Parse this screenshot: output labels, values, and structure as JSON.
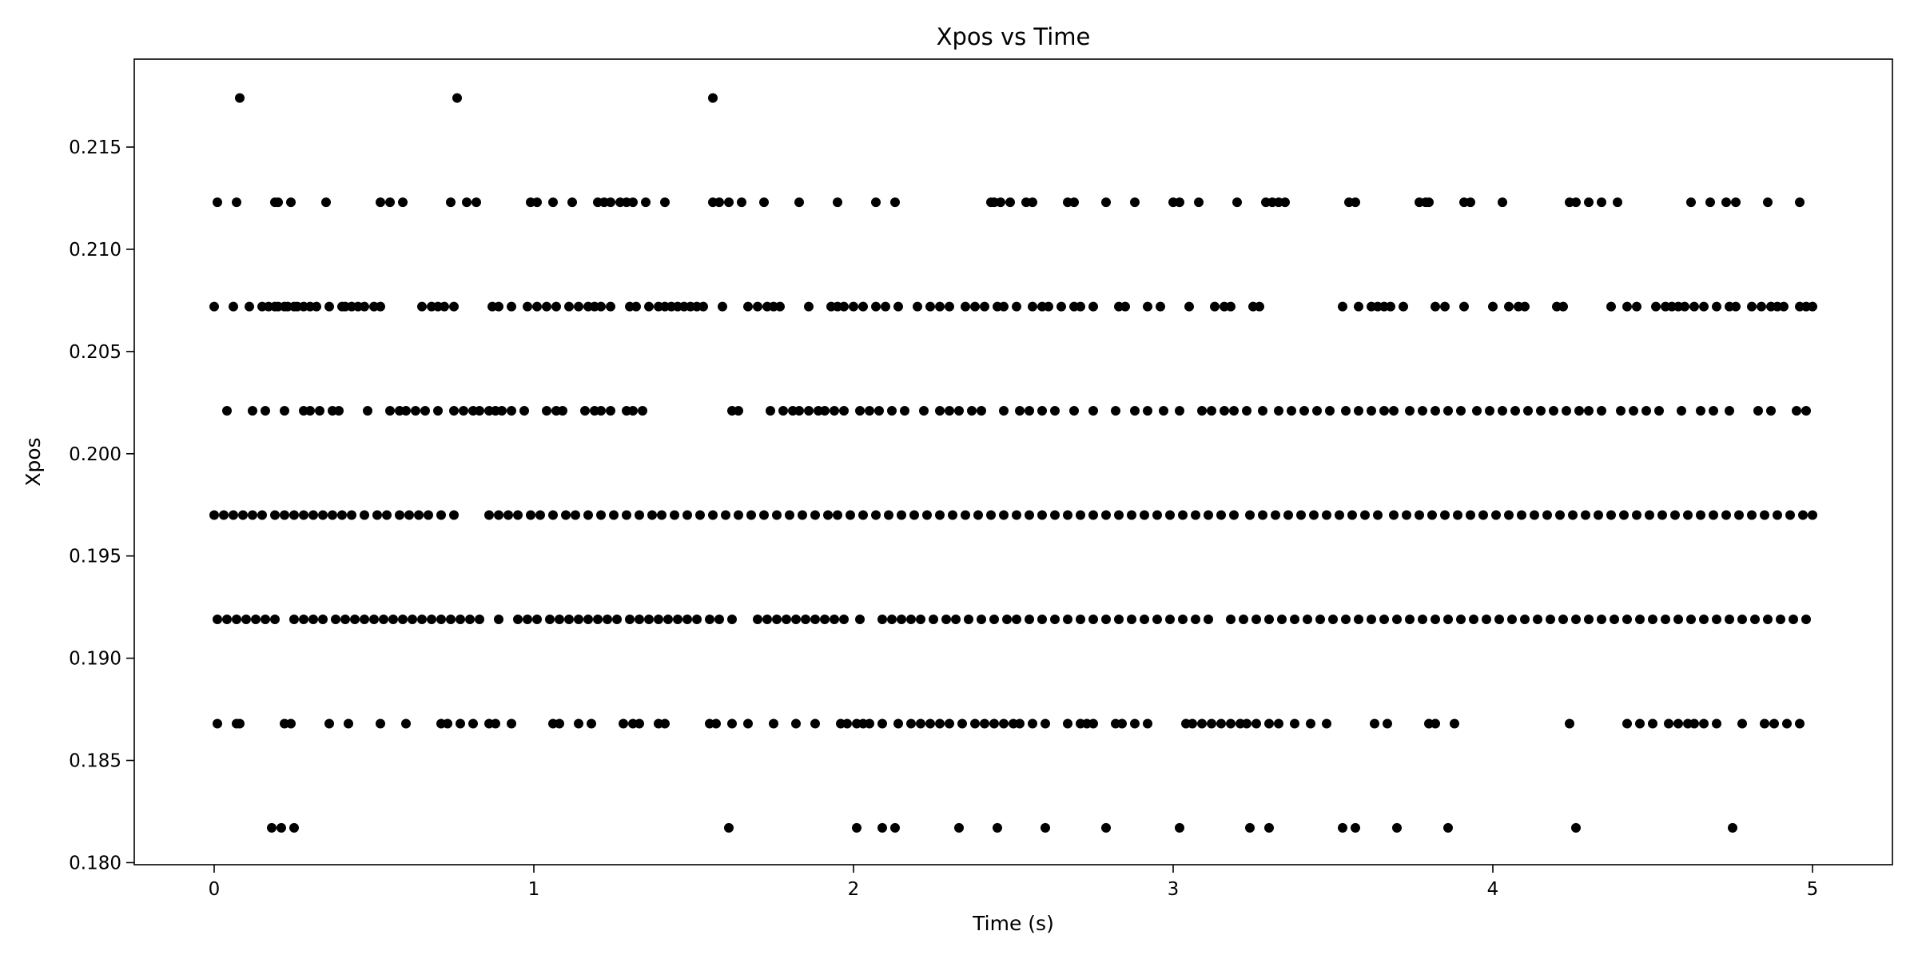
{
  "chart_data": {
    "type": "scatter",
    "title": "Xpos vs Time",
    "xlabel": "Time (s)",
    "ylabel": "Xpos",
    "xlim": [
      -0.25,
      5.25
    ],
    "ylim": [
      0.1799,
      0.2193
    ],
    "xticks": [
      0,
      1,
      2,
      3,
      4,
      5
    ],
    "xtick_labels": [
      "0",
      "1",
      "2",
      "3",
      "4",
      "5"
    ],
    "yticks": [
      0.18,
      0.185,
      0.19,
      0.195,
      0.2,
      0.205,
      0.21,
      0.215
    ],
    "ytick_labels": [
      "0.180",
      "0.185",
      "0.190",
      "0.195",
      "0.200",
      "0.205",
      "0.210",
      "0.215"
    ],
    "grid": false,
    "marker_color": "#000000",
    "series": [
      {
        "levels": [
          {
            "y": 0.2174,
            "x": [
              0.08,
              0.76,
              1.56
            ]
          },
          {
            "y": 0.2123,
            "x": [
              0.01,
              0.07,
              0.19,
              0.2,
              0.24,
              0.35,
              0.52,
              0.55,
              0.59,
              0.74,
              0.79,
              0.82,
              0.99,
              1.01,
              1.06,
              1.12,
              1.2,
              1.22,
              1.24,
              1.27,
              1.29,
              1.31,
              1.35,
              1.41,
              1.56,
              1.58,
              1.61,
              1.65,
              1.72,
              1.83,
              1.95,
              2.07,
              2.13,
              2.43,
              2.44,
              2.46,
              2.49,
              2.54,
              2.56,
              2.67,
              2.69,
              2.79,
              2.88,
              3.0,
              3.02,
              3.08,
              3.2,
              3.29,
              3.31,
              3.33,
              3.35,
              3.55,
              3.57,
              3.77,
              3.79,
              3.8,
              3.91,
              3.93,
              4.03,
              4.24,
              4.26,
              4.3,
              4.34,
              4.39,
              4.62,
              4.68,
              4.73,
              4.76,
              4.86,
              4.96
            ]
          },
          {
            "y": 0.2072,
            "x": [
              0.0,
              0.06,
              0.11,
              0.15,
              0.17,
              0.19,
              0.2,
              0.22,
              0.23,
              0.25,
              0.26,
              0.28,
              0.3,
              0.32,
              0.36,
              0.4,
              0.41,
              0.43,
              0.45,
              0.47,
              0.5,
              0.52,
              0.65,
              0.68,
              0.7,
              0.72,
              0.75,
              0.87,
              0.89,
              0.93,
              0.98,
              1.01,
              1.04,
              1.07,
              1.11,
              1.14,
              1.17,
              1.19,
              1.21,
              1.24,
              1.3,
              1.32,
              1.36,
              1.39,
              1.41,
              1.43,
              1.45,
              1.47,
              1.49,
              1.51,
              1.53,
              1.59,
              1.67,
              1.7,
              1.73,
              1.75,
              1.77,
              1.86,
              1.93,
              1.95,
              1.97,
              2.0,
              2.03,
              2.07,
              2.1,
              2.14,
              2.2,
              2.24,
              2.27,
              2.3,
              2.35,
              2.38,
              2.41,
              2.45,
              2.47,
              2.51,
              2.56,
              2.59,
              2.61,
              2.65,
              2.69,
              2.71,
              2.75,
              2.83,
              2.85,
              2.92,
              2.96,
              3.05,
              3.13,
              3.16,
              3.18,
              3.25,
              3.27,
              3.53,
              3.58,
              3.62,
              3.64,
              3.66,
              3.68,
              3.72,
              3.82,
              3.85,
              3.91,
              4.0,
              4.05,
              4.08,
              4.1,
              4.2,
              4.22,
              4.37,
              4.42,
              4.45,
              4.51,
              4.54,
              4.56,
              4.58,
              4.6,
              4.63,
              4.66,
              4.7,
              4.74,
              4.76,
              4.81,
              4.84,
              4.87,
              4.89,
              4.91,
              4.96,
              4.98,
              5.0
            ]
          },
          {
            "y": 0.2021,
            "x": [
              0.04,
              0.12,
              0.16,
              0.22,
              0.28,
              0.3,
              0.33,
              0.37,
              0.39,
              0.48,
              0.55,
              0.58,
              0.6,
              0.63,
              0.66,
              0.7,
              0.75,
              0.78,
              0.81,
              0.83,
              0.86,
              0.88,
              0.9,
              0.93,
              0.97,
              1.04,
              1.07,
              1.09,
              1.16,
              1.19,
              1.21,
              1.24,
              1.29,
              1.31,
              1.34,
              1.62,
              1.64,
              1.74,
              1.78,
              1.81,
              1.83,
              1.86,
              1.89,
              1.91,
              1.94,
              1.97,
              2.02,
              2.05,
              2.08,
              2.12,
              2.16,
              2.22,
              2.27,
              2.3,
              2.33,
              2.37,
              2.4,
              2.47,
              2.52,
              2.55,
              2.59,
              2.63,
              2.69,
              2.75,
              2.82,
              2.88,
              2.92,
              2.97,
              3.02,
              3.09,
              3.12,
              3.16,
              3.19,
              3.23,
              3.28,
              3.33,
              3.37,
              3.41,
              3.45,
              3.49,
              3.54,
              3.58,
              3.62,
              3.66,
              3.69,
              3.74,
              3.78,
              3.82,
              3.86,
              3.9,
              3.95,
              3.99,
              4.03,
              4.07,
              4.11,
              4.15,
              4.19,
              4.23,
              4.27,
              4.3,
              4.34,
              4.4,
              4.44,
              4.48,
              4.52,
              4.59,
              4.65,
              4.69,
              4.74,
              4.83,
              4.87,
              4.95,
              4.98
            ]
          },
          {
            "y": 0.197,
            "x": [
              0.0,
              0.03,
              0.06,
              0.09,
              0.12,
              0.15,
              0.19,
              0.22,
              0.25,
              0.28,
              0.31,
              0.34,
              0.37,
              0.4,
              0.43,
              0.47,
              0.51,
              0.54,
              0.58,
              0.61,
              0.64,
              0.67,
              0.71,
              0.75,
              0.86,
              0.89,
              0.92,
              0.95,
              0.99,
              1.02,
              1.06,
              1.1,
              1.13,
              1.17,
              1.21,
              1.25,
              1.29,
              1.33,
              1.37,
              1.4,
              1.44,
              1.48,
              1.52,
              1.56,
              1.6,
              1.64,
              1.68,
              1.72,
              1.76,
              1.8,
              1.84,
              1.88,
              1.92,
              1.95,
              1.99,
              2.03,
              2.07,
              2.11,
              2.15,
              2.19,
              2.23,
              2.27,
              2.31,
              2.35,
              2.39,
              2.43,
              2.47,
              2.51,
              2.55,
              2.59,
              2.63,
              2.67,
              2.71,
              2.75,
              2.79,
              2.83,
              2.87,
              2.91,
              2.95,
              2.99,
              3.03,
              3.07,
              3.11,
              3.15,
              3.19,
              3.24,
              3.28,
              3.32,
              3.36,
              3.4,
              3.44,
              3.48,
              3.52,
              3.56,
              3.6,
              3.64,
              3.69,
              3.73,
              3.77,
              3.81,
              3.85,
              3.89,
              3.93,
              3.97,
              4.01,
              4.05,
              4.09,
              4.13,
              4.17,
              4.21,
              4.25,
              4.29,
              4.33,
              4.37,
              4.41,
              4.45,
              4.49,
              4.53,
              4.57,
              4.61,
              4.65,
              4.69,
              4.73,
              4.77,
              4.81,
              4.85,
              4.89,
              4.93,
              4.97,
              5.0
            ]
          },
          {
            "y": 0.1919,
            "x": [
              0.01,
              0.04,
              0.07,
              0.1,
              0.13,
              0.16,
              0.19,
              0.25,
              0.28,
              0.31,
              0.34,
              0.38,
              0.41,
              0.44,
              0.47,
              0.5,
              0.53,
              0.56,
              0.59,
              0.62,
              0.65,
              0.68,
              0.71,
              0.74,
              0.77,
              0.8,
              0.83,
              0.89,
              0.95,
              0.98,
              1.01,
              1.05,
              1.08,
              1.11,
              1.14,
              1.17,
              1.2,
              1.23,
              1.26,
              1.3,
              1.33,
              1.36,
              1.39,
              1.42,
              1.45,
              1.48,
              1.51,
              1.55,
              1.58,
              1.62,
              1.7,
              1.73,
              1.76,
              1.79,
              1.82,
              1.85,
              1.88,
              1.91,
              1.94,
              1.97,
              2.02,
              2.09,
              2.12,
              2.15,
              2.18,
              2.21,
              2.25,
              2.29,
              2.32,
              2.36,
              2.4,
              2.44,
              2.48,
              2.51,
              2.55,
              2.59,
              2.63,
              2.67,
              2.71,
              2.75,
              2.79,
              2.83,
              2.87,
              2.91,
              2.95,
              2.99,
              3.03,
              3.07,
              3.11,
              3.18,
              3.22,
              3.26,
              3.3,
              3.34,
              3.38,
              3.42,
              3.46,
              3.5,
              3.54,
              3.58,
              3.62,
              3.66,
              3.7,
              3.74,
              3.78,
              3.82,
              3.86,
              3.9,
              3.94,
              3.98,
              4.02,
              4.06,
              4.1,
              4.14,
              4.18,
              4.22,
              4.26,
              4.3,
              4.34,
              4.38,
              4.42,
              4.46,
              4.5,
              4.54,
              4.58,
              4.62,
              4.66,
              4.7,
              4.74,
              4.78,
              4.82,
              4.86,
              4.9,
              4.94,
              4.98
            ]
          },
          {
            "y": 0.1868,
            "x": [
              0.01,
              0.07,
              0.08,
              0.22,
              0.24,
              0.36,
              0.42,
              0.52,
              0.6,
              0.71,
              0.73,
              0.77,
              0.81,
              0.86,
              0.88,
              0.93,
              1.06,
              1.08,
              1.14,
              1.18,
              1.28,
              1.31,
              1.33,
              1.39,
              1.41,
              1.55,
              1.57,
              1.62,
              1.67,
              1.75,
              1.82,
              1.88,
              1.96,
              1.98,
              2.01,
              2.03,
              2.05,
              2.09,
              2.14,
              2.18,
              2.21,
              2.24,
              2.27,
              2.3,
              2.34,
              2.38,
              2.41,
              2.44,
              2.47,
              2.5,
              2.52,
              2.56,
              2.6,
              2.67,
              2.71,
              2.73,
              2.75,
              2.82,
              2.84,
              2.88,
              2.92,
              3.04,
              3.06,
              3.09,
              3.12,
              3.15,
              3.18,
              3.21,
              3.23,
              3.26,
              3.3,
              3.33,
              3.38,
              3.43,
              3.48,
              3.63,
              3.67,
              3.8,
              3.82,
              3.88,
              4.24,
              4.42,
              4.46,
              4.5,
              4.55,
              4.58,
              4.61,
              4.63,
              4.66,
              4.7,
              4.78,
              4.85,
              4.88,
              4.92,
              4.96
            ]
          },
          {
            "y": 0.1817,
            "x": [
              0.18,
              0.21,
              0.25,
              1.61,
              2.01,
              2.09,
              2.13,
              2.33,
              2.45,
              2.6,
              2.79,
              3.02,
              3.24,
              3.3,
              3.53,
              3.57,
              3.7,
              3.86,
              4.26,
              4.75
            ]
          }
        ]
      }
    ]
  }
}
